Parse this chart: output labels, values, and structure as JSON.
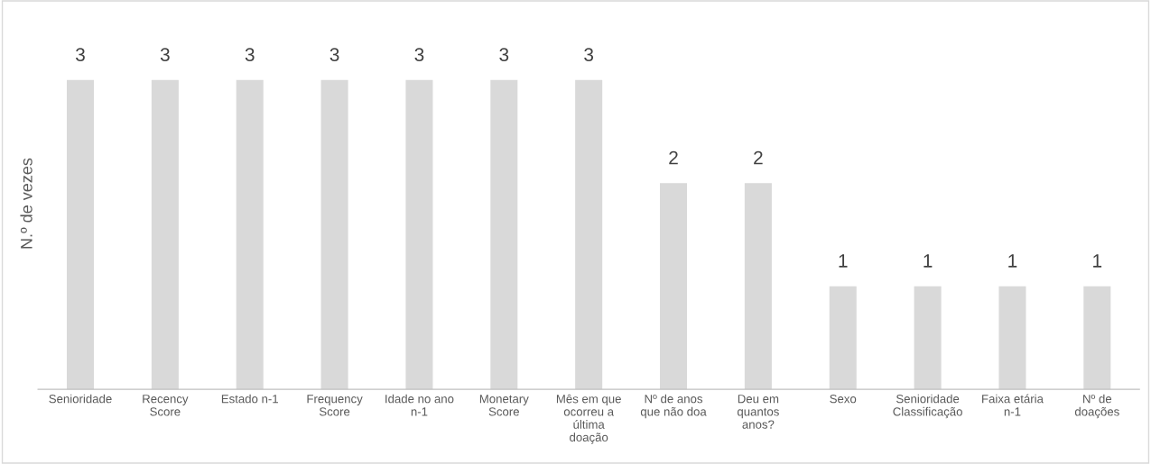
{
  "chart_data": {
    "type": "bar",
    "ylabel": "N.º de vezes",
    "categories": [
      "Senioridade",
      "Recency\nScore",
      "Estado n-1",
      "Frequency\nScore",
      "Idade no ano\nn-1",
      "Monetary\nScore",
      "Mês em que\nocorreu a\núltima\ndoação",
      "Nº de anos\nque não doa",
      "Deu em\nquantos\nanos?",
      "Sexo",
      "Senioridade\nClassificação",
      "Faixa etária\nn-1",
      "Nº de\ndoações"
    ],
    "values": [
      3,
      3,
      3,
      3,
      3,
      3,
      3,
      2,
      2,
      1,
      1,
      1,
      1
    ],
    "color": "#d9d9d9",
    "data_labels": true,
    "grid": false,
    "legend": false
  }
}
